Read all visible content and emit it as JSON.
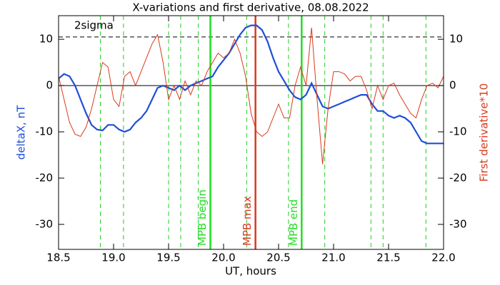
{
  "chart_data": {
    "type": "line",
    "title": "X-variations and first derivative, 08.08.2022",
    "x_label": "UT, hours",
    "y_label": "deltaX, nT",
    "y2_label": "First derivative*10",
    "x": [
      18.5,
      18.55,
      18.6,
      18.65,
      18.7,
      18.75,
      18.8,
      18.85,
      18.9,
      18.95,
      19.0,
      19.05,
      19.1,
      19.15,
      19.2,
      19.25,
      19.3,
      19.35,
      19.4,
      19.45,
      19.5,
      19.55,
      19.6,
      19.65,
      19.7,
      19.75,
      19.8,
      19.85,
      19.9,
      19.95,
      20.0,
      20.05,
      20.1,
      20.15,
      20.2,
      20.25,
      20.3,
      20.35,
      20.4,
      20.45,
      20.5,
      20.55,
      20.6,
      20.65,
      20.7,
      20.75,
      20.8,
      20.85,
      20.9,
      20.95,
      21.0,
      21.05,
      21.1,
      21.15,
      21.2,
      21.25,
      21.3,
      21.35,
      21.4,
      21.45,
      21.5,
      21.55,
      21.6,
      21.65,
      21.7,
      21.75,
      21.8,
      21.85,
      21.9,
      21.95,
      22.0
    ],
    "series": [
      {
        "name": "deltaX",
        "color": "#1f4fd6",
        "axis": "y",
        "values": [
          1.5,
          2.5,
          2,
          0,
          -3,
          -6,
          -8.5,
          -9.5,
          -9.7,
          -8.5,
          -8.5,
          -9.5,
          -10,
          -9.5,
          -8,
          -7,
          -5.5,
          -3,
          -0.5,
          0,
          -0.5,
          -1,
          0,
          -1,
          0,
          0.5,
          1,
          1.5,
          2,
          4,
          5.5,
          7,
          9,
          11,
          12.5,
          13,
          13,
          12,
          9.5,
          6,
          3,
          1,
          -1,
          -2.5,
          -3,
          -2,
          0.5,
          -2,
          -4.5,
          -5,
          -4.5,
          -4,
          -3.5,
          -3,
          -2.5,
          -2,
          -2,
          -4,
          -5.5,
          -5.5,
          -6.5,
          -7,
          -6.5,
          -7,
          -8,
          -10,
          -12,
          -12.5,
          -12.5,
          -12.5,
          -12.5
        ]
      },
      {
        "name": "First derivative*10",
        "color": "#d83a1e",
        "axis": "y2",
        "values": [
          2,
          -3,
          -8,
          -10.5,
          -11,
          -9,
          -5,
          0,
          5,
          4,
          -3,
          -4.5,
          2,
          3,
          0,
          3,
          6,
          9,
          11,
          5,
          -3,
          0,
          -3,
          1,
          -2,
          1,
          0,
          3,
          5,
          7,
          6,
          7,
          10,
          7,
          2,
          -6,
          -10,
          -11,
          -10,
          -7,
          -4,
          -7,
          -7,
          0,
          4,
          0,
          12.5,
          -3,
          -17,
          -5,
          3,
          3,
          2.5,
          1,
          2,
          2,
          -1,
          -5,
          0,
          -3,
          0,
          0.5,
          -2,
          -4,
          -6,
          -7,
          -3,
          0,
          0.5,
          -0.5,
          2
        ]
      }
    ],
    "xlim": [
      18.5,
      22.0
    ],
    "xticks": [
      18.5,
      {
        "value": 19.0,
        "label": "19.0"
      },
      19.5,
      {
        "value": 20.0,
        "label": "20.0"
      },
      20.5,
      {
        "value": 21.0,
        "label": "21.0"
      },
      21.5,
      {
        "value": 22.0,
        "label": "22.0"
      }
    ],
    "ylim": [
      -35.4,
      15.1
    ],
    "yticks": [
      -30,
      -20,
      -10,
      0,
      10
    ],
    "y2lim": [
      -35.4,
      15.1
    ],
    "y2ticks": [
      -30,
      -20,
      -10,
      0,
      10
    ],
    "hlines": [
      {
        "value": 0,
        "style": "solid",
        "color": "#000000"
      },
      {
        "value": 10.5,
        "style": "dashed",
        "color": "#000000",
        "label": "2sigma"
      }
    ],
    "vlines": [
      {
        "x": 18.88,
        "style": "dashed",
        "color": "#22cc22"
      },
      {
        "x": 19.09,
        "style": "dashed",
        "color": "#22cc22"
      },
      {
        "x": 19.5,
        "style": "dashed",
        "color": "#22cc22"
      },
      {
        "x": 19.61,
        "style": "dashed",
        "color": "#22cc22"
      },
      {
        "x": 19.77,
        "style": "dashed",
        "color": "#22cc22"
      },
      {
        "x": 20.21,
        "style": "dashed",
        "color": "#22cc22"
      },
      {
        "x": 20.59,
        "style": "dashed",
        "color": "#22cc22"
      },
      {
        "x": 20.92,
        "style": "dashed",
        "color": "#22cc22"
      },
      {
        "x": 21.34,
        "style": "dashed",
        "color": "#22cc22"
      },
      {
        "x": 21.45,
        "style": "dashed",
        "color": "#22cc22"
      },
      {
        "x": 21.84,
        "style": "dashed",
        "color": "#22cc22"
      },
      {
        "x": 19.88,
        "style": "solid",
        "color": "#22dd22",
        "label": "MPB begin"
      },
      {
        "x": 20.29,
        "style": "solid",
        "color": "#d83a1e",
        "label": "MPB max"
      },
      {
        "x": 20.71,
        "style": "solid",
        "color": "#22dd22",
        "label": "MPB end"
      }
    ]
  }
}
